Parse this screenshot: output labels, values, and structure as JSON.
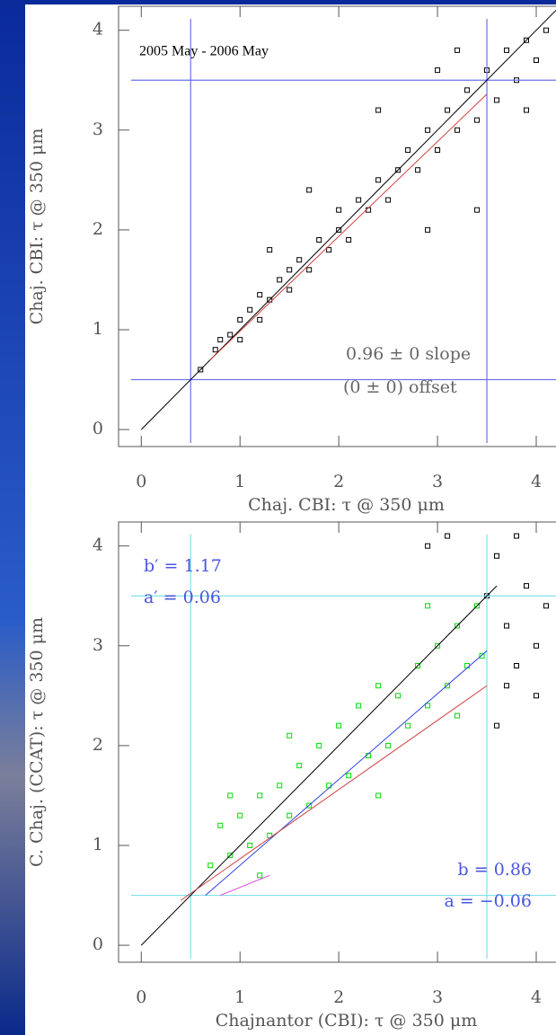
{
  "chart_data": [
    {
      "type": "scatter",
      "x_label": "Chaj. CBI: τ @ 350 μm",
      "y_label": "Chaj. CBI: τ @ 350 μm",
      "annotations": [
        "2005 May - 2006 May",
        "0.96 ± 0 slope",
        "(0 ± 0) offset"
      ],
      "xlim": [
        -0.23,
        4.2
      ],
      "ylim": [
        -0.17,
        4.24
      ],
      "xticks": [
        0,
        1,
        2,
        3,
        4
      ],
      "yticks": [
        0,
        1,
        2,
        3,
        4
      ],
      "ref_lines": {
        "color": "#6b70e8",
        "x": [
          0.5,
          3.5
        ],
        "y": [
          0.5,
          3.5
        ]
      },
      "fit_lines": [
        {
          "color": "#000000",
          "x": [
            0,
            4.2
          ],
          "y": [
            0,
            4.2
          ]
        },
        {
          "color": "#d04040",
          "x": [
            0.7,
            3.5
          ],
          "y": [
            0.7,
            3.36
          ]
        }
      ],
      "series": [
        {
          "color": "#000000",
          "x": [
            0.6,
            0.75,
            0.8,
            0.9,
            1.0,
            1.0,
            1.1,
            1.2,
            1.2,
            1.3,
            1.4,
            1.5,
            1.5,
            1.6,
            1.7,
            1.8,
            1.9,
            2.0,
            2.0,
            2.1,
            2.2,
            2.3,
            2.4,
            2.5,
            2.6,
            2.7,
            2.8,
            2.9,
            3.0,
            3.1,
            3.2,
            3.3,
            3.4,
            3.5,
            3.6,
            3.7,
            3.8,
            3.9,
            4.0,
            4.1,
            1.3,
            2.9,
            3.2,
            3.0,
            2.4,
            3.9,
            3.4,
            1.7
          ],
          "y": [
            0.6,
            0.8,
            0.9,
            0.95,
            1.1,
            0.9,
            1.2,
            1.1,
            1.35,
            1.3,
            1.5,
            1.4,
            1.6,
            1.7,
            1.6,
            1.9,
            1.8,
            2.0,
            2.2,
            1.9,
            2.3,
            2.2,
            2.5,
            2.3,
            2.6,
            2.8,
            2.6,
            3.0,
            2.8,
            3.2,
            3.0,
            3.4,
            3.1,
            3.6,
            3.3,
            3.8,
            3.5,
            3.9,
            3.7,
            4.0,
            1.8,
            2.0,
            3.8,
            3.6,
            3.2,
            3.2,
            2.2,
            2.4
          ]
        }
      ]
    },
    {
      "type": "scatter",
      "x_label": "Chajnantor (CBI): τ @ 350 μm",
      "y_label": "C. Chaj. (CCAT): τ @ 350 μm",
      "annotations": [
        "b′ = 1.17",
        "a′ = 0.06",
        "b = 0.86",
        "a = −0.06"
      ],
      "xlim": [
        -0.23,
        4.2
      ],
      "ylim": [
        -0.17,
        4.24
      ],
      "xticks": [
        0,
        1,
        2,
        3,
        4
      ],
      "yticks": [
        0,
        1,
        2,
        3,
        4
      ],
      "ref_lines": {
        "color": "#7fe0ea",
        "x": [
          0.5,
          3.5
        ],
        "y": [
          0.5,
          3.5
        ]
      },
      "fit_lines": [
        {
          "color": "#000000",
          "x": [
            0,
            3.6
          ],
          "y": [
            0,
            3.6
          ]
        },
        {
          "color": "#2a40e0",
          "x": [
            0.65,
            3.5
          ],
          "y": [
            0.5,
            2.95
          ]
        },
        {
          "color": "#d04040",
          "x": [
            0.4,
            3.5
          ],
          "y": [
            0.45,
            2.6
          ]
        },
        {
          "color": "#e040e0",
          "x": [
            0.8,
            1.3
          ],
          "y": [
            0.5,
            0.7
          ]
        }
      ],
      "series": [
        {
          "color": "#00dd00",
          "x": [
            0.7,
            0.8,
            0.9,
            1.0,
            1.1,
            1.2,
            1.3,
            1.4,
            1.5,
            1.6,
            1.7,
            1.8,
            1.9,
            2.0,
            2.1,
            2.2,
            2.3,
            2.4,
            2.5,
            2.6,
            2.7,
            2.8,
            2.9,
            3.0,
            3.1,
            3.2,
            3.3,
            3.4,
            3.45,
            1.5,
            2.4,
            0.9,
            2.9,
            3.2,
            1.2
          ],
          "y": [
            0.8,
            1.2,
            0.9,
            1.3,
            1.0,
            1.5,
            1.1,
            1.6,
            1.3,
            1.8,
            1.4,
            2.0,
            1.6,
            2.2,
            1.7,
            2.4,
            1.9,
            2.6,
            2.0,
            2.5,
            2.2,
            2.8,
            2.4,
            3.0,
            2.6,
            3.2,
            2.8,
            3.4,
            2.9,
            2.1,
            1.5,
            1.5,
            3.4,
            2.3,
            0.7
          ]
        },
        {
          "color": "#000000",
          "x": [
            3.6,
            3.7,
            3.8,
            3.9,
            4.0,
            4.1,
            3.6,
            3.8,
            4.0,
            3.7,
            3.1,
            2.9,
            3.5
          ],
          "y": [
            3.9,
            3.2,
            2.8,
            3.6,
            2.5,
            3.4,
            2.2,
            4.1,
            3.0,
            2.6,
            4.1,
            4.0,
            3.5
          ]
        }
      ]
    }
  ]
}
